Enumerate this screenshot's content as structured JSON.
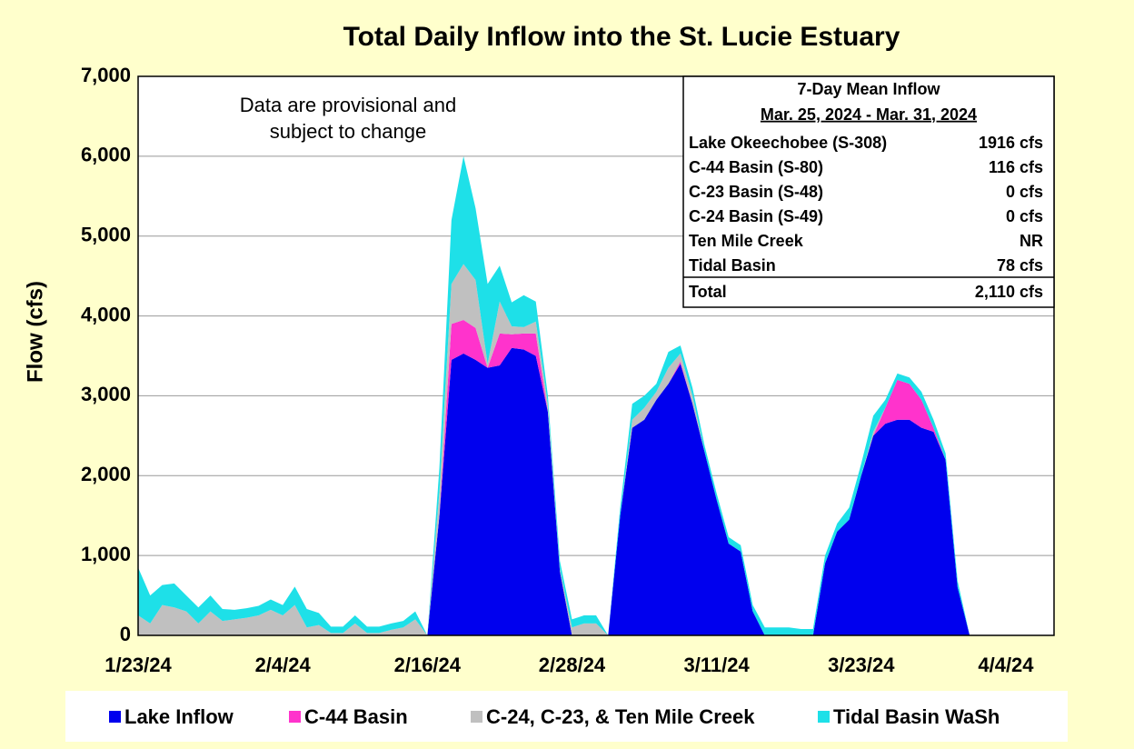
{
  "chart_data": {
    "type": "stacked_area",
    "title": "Total Daily Inflow into the St. Lucie Estuary",
    "y_label": "Flow (cfs)",
    "annotation": [
      "Data are provisional and",
      "subject to change"
    ],
    "categories": [
      "1/23/24",
      null,
      null,
      null,
      null,
      null,
      null,
      null,
      null,
      null,
      null,
      null,
      "2/4/24",
      null,
      null,
      null,
      null,
      null,
      null,
      null,
      null,
      null,
      null,
      null,
      "2/16/24",
      null,
      null,
      null,
      null,
      null,
      null,
      null,
      null,
      null,
      null,
      null,
      "2/28/24",
      null,
      null,
      null,
      null,
      null,
      null,
      null,
      null,
      null,
      null,
      null,
      "3/11/24",
      null,
      null,
      null,
      null,
      null,
      null,
      null,
      null,
      null,
      null,
      null,
      "3/23/24",
      null,
      null,
      null,
      null,
      null,
      null,
      null,
      null,
      null,
      null,
      null,
      "4/4/24",
      null,
      null,
      null,
      null
    ],
    "ylim": [
      0,
      7000
    ],
    "yticks": [
      0,
      {
        "value": 1000,
        "label": "1,000"
      },
      {
        "value": 2000,
        "label": "2,000"
      },
      {
        "value": 3000,
        "label": "3,000"
      },
      {
        "value": 4000,
        "label": "4,000"
      },
      {
        "value": 5000,
        "label": "5,000"
      },
      {
        "value": 6000,
        "label": "6,000"
      },
      {
        "value": 7000,
        "label": "7,000"
      }
    ],
    "grid": true,
    "series": [
      {
        "name": "Lake Inflow",
        "color": "#0000ee",
        "values": [
          0,
          0,
          0,
          0,
          0,
          0,
          0,
          0,
          0,
          0,
          0,
          0,
          0,
          0,
          0,
          0,
          0,
          0,
          0,
          0,
          0,
          0,
          0,
          0,
          0,
          1500,
          3450,
          3530,
          3450,
          3350,
          3380,
          3600,
          3580,
          3500,
          2800,
          800,
          0,
          0,
          0,
          0,
          1500,
          2600,
          2700,
          2950,
          3150,
          3400,
          2900,
          2300,
          1700,
          1150,
          1050,
          300,
          0,
          0,
          0,
          0,
          0,
          900,
          1300,
          1450,
          2000,
          2500,
          2650,
          2700,
          2700,
          2600,
          2550,
          2200,
          600,
          0,
          null,
          null,
          null,
          null,
          null,
          null,
          null
        ]
      },
      {
        "name": "C-44 Basin",
        "color": "#ff33cc",
        "values": [
          0,
          0,
          0,
          0,
          0,
          0,
          0,
          0,
          0,
          0,
          0,
          0,
          0,
          0,
          0,
          0,
          0,
          0,
          0,
          0,
          0,
          0,
          0,
          0,
          0,
          0,
          450,
          420,
          400,
          0,
          400,
          170,
          200,
          280,
          0,
          0,
          0,
          0,
          0,
          0,
          0,
          0,
          0,
          0,
          0,
          30,
          0,
          0,
          0,
          0,
          0,
          0,
          0,
          0,
          0,
          0,
          0,
          0,
          0,
          0,
          0,
          0,
          200,
          500,
          450,
          350,
          50,
          0,
          0,
          0,
          null,
          null,
          null,
          null,
          null,
          null,
          null
        ]
      },
      {
        "name": "C-24, C-23, & Ten Mile Creek",
        "color": "#c0c0c0",
        "values": [
          250,
          150,
          380,
          350,
          300,
          150,
          300,
          180,
          200,
          220,
          250,
          320,
          250,
          380,
          100,
          130,
          30,
          30,
          150,
          30,
          30,
          70,
          100,
          200,
          0,
          300,
          500,
          700,
          600,
          50,
          400,
          100,
          80,
          150,
          100,
          30,
          100,
          150,
          150,
          0,
          0,
          100,
          150,
          100,
          200,
          100,
          100,
          0,
          0,
          0,
          0,
          0,
          0,
          0,
          0,
          0,
          0,
          0,
          0,
          0,
          0,
          50,
          0,
          0,
          0,
          0,
          0,
          0,
          0,
          0,
          null,
          null,
          null,
          null,
          null,
          null,
          null
        ]
      },
      {
        "name": "Tidal Basin WaSh",
        "color": "#1ee0e8",
        "values": [
          600,
          350,
          250,
          300,
          200,
          200,
          200,
          150,
          120,
          120,
          120,
          130,
          130,
          230,
          230,
          150,
          80,
          80,
          100,
          80,
          80,
          80,
          80,
          100,
          0,
          300,
          800,
          1350,
          900,
          1000,
          450,
          300,
          400,
          250,
          100,
          100,
          100,
          100,
          100,
          0,
          100,
          200,
          150,
          100,
          200,
          100,
          100,
          80,
          80,
          80,
          80,
          80,
          100,
          100,
          100,
          80,
          80,
          100,
          100,
          150,
          150,
          200,
          100,
          80,
          80,
          100,
          100,
          80,
          80,
          0,
          null,
          null,
          null,
          null,
          null,
          null,
          null
        ]
      }
    ],
    "info_box": {
      "title": "7-Day Mean Inflow",
      "subtitle": "Mar. 25, 2024 - Mar. 31, 2024",
      "rows": [
        [
          "Lake Okeechobee (S-308)",
          "1916 cfs"
        ],
        [
          "C-44 Basin (S-80)",
          "116 cfs"
        ],
        [
          "C-23 Basin (S-48)",
          "0 cfs"
        ],
        [
          "C-24 Basin (S-49)",
          "0 cfs"
        ],
        [
          "Ten Mile Creek",
          "NR"
        ],
        [
          "Tidal Basin",
          "78 cfs"
        ]
      ],
      "total": [
        "Total",
        "2,110 cfs"
      ]
    }
  }
}
